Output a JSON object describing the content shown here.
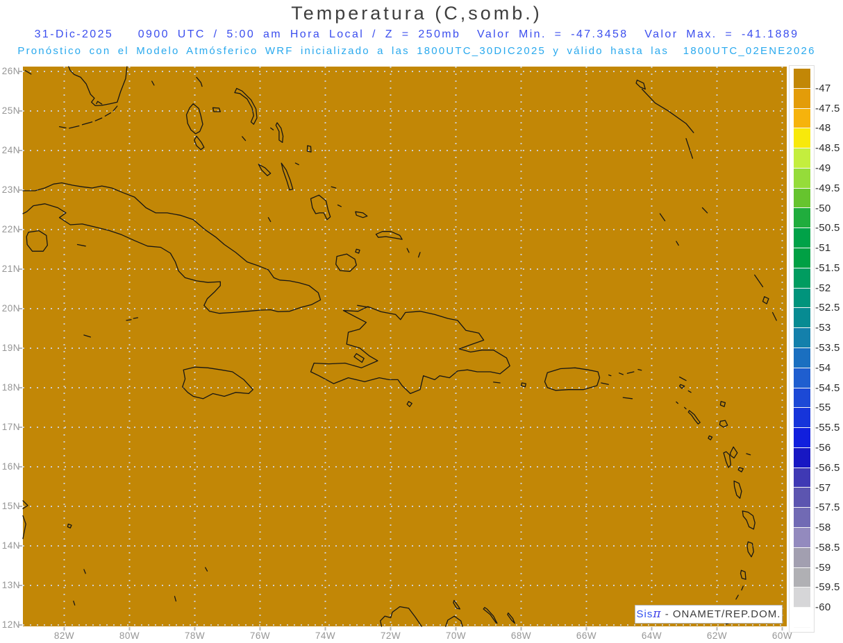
{
  "title": "Temperatura (C,somb.)",
  "header": {
    "line1": "31-Dic-2025   0900 UTC / 5:00 am Hora Local / Z = 250mb  Valor Min. = -47.3458  Valor Max. = -41.1889",
    "line2": "Pronóstico con el Modelo Atmósferico WRF inicializado a las 1800UTC_30DIC2025 y válido hasta las  1800UTC_02ENE2026"
  },
  "map": {
    "lat_axis_labels": [
      "26N",
      "25N",
      "24N",
      "23N",
      "22N",
      "21N",
      "20N",
      "19N",
      "18N",
      "17N",
      "16N",
      "15N",
      "14N",
      "13N",
      "12N"
    ],
    "lon_axis_labels": [
      "82W",
      "80W",
      "78W",
      "76W",
      "74W",
      "72W",
      "70W",
      "68W",
      "66W",
      "64W",
      "62W",
      "60W"
    ],
    "fill_color": "#c28706",
    "coastline_color": "#151515",
    "grid_color": "#cfcfcf",
    "tick_color": "#b5b5b5"
  },
  "colorbar": {
    "tick_labels": [
      "-47",
      "-47.5",
      "-48",
      "-48.5",
      "-49",
      "-49.5",
      "-50",
      "-50.5",
      "-51",
      "-51.5",
      "-52",
      "-52.5",
      "-53",
      "-53.5",
      "-54",
      "-54.5",
      "-55",
      "-55.5",
      "-56",
      "-56.5",
      "-57",
      "-57.5",
      "-58",
      "-58.5",
      "-59",
      "-59.5",
      "-60"
    ],
    "segment_colors": [
      "#c28706",
      "#e39c09",
      "#f6b30c",
      "#f8e90b",
      "#c4ee3e",
      "#95dc3a",
      "#66c42e",
      "#20ad3d",
      "#00a248",
      "#00a044",
      "#009c60",
      "#00947c",
      "#078b92",
      "#1480ab",
      "#1a6fc0",
      "#1f5ecf",
      "#1c49d6",
      "#1634da",
      "#111fdd",
      "#1717c3",
      "#3f39b4",
      "#5c55b0",
      "#716ab4",
      "#938abe",
      "#a29fb0",
      "#b0b0b4",
      "#d6d6d8",
      "#ffffff"
    ]
  },
  "watermark": {
    "brand": "Sis",
    "pi": "π",
    "dash": "-",
    "org": "ONAMET/REP.DOM."
  },
  "chart_data": {
    "type": "heatmap",
    "title": "Temperatura (C,somb.)",
    "level": "250mb",
    "valid_time": "31-Dic-2025 0900 UTC / 5:00 am Hora Local",
    "value_min": -47.3458,
    "value_max": -41.1889,
    "lat_range_n": [
      12,
      26.1
    ],
    "lon_range_w": [
      83.3,
      59.9
    ],
    "field_note": "entire domain shaded with the first color class (values above -47)",
    "colorbar_ticks": [
      -47,
      -47.5,
      -48,
      -48.5,
      -49,
      -49.5,
      -50,
      -50.5,
      -51,
      -51.5,
      -52,
      -52.5,
      -53,
      -53.5,
      -54,
      -54.5,
      -55,
      -55.5,
      -56,
      -56.5,
      -57,
      -57.5,
      -58,
      -58.5,
      -59,
      -59.5,
      -60
    ],
    "legend_position": "right"
  }
}
